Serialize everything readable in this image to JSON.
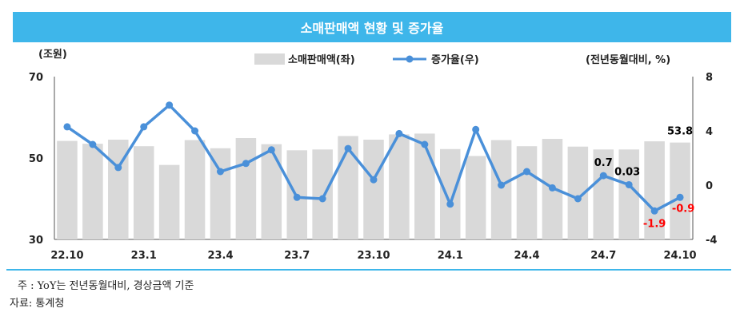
{
  "header": {
    "title": "소매판매액 현황 및 증가율"
  },
  "chart_data": {
    "type": "bar+line",
    "left_unit": "(조원)",
    "right_unit": "(전년동월대비, %)",
    "legend": {
      "bar": "소매판매액(좌)",
      "line": "증가율(우)"
    },
    "y_left": {
      "min": 30,
      "max": 70,
      "ticks": [
        "70",
        "50",
        "30"
      ]
    },
    "y_right": {
      "min": -4,
      "max": 8,
      "ticks": [
        "8",
        "4",
        "0",
        "-4"
      ]
    },
    "x_tick_labels": [
      "22.10",
      "23.1",
      "23.4",
      "23.7",
      "23.10",
      "24.1",
      "24.4",
      "24.7",
      "24.10"
    ],
    "x_tick_index": [
      0,
      3,
      6,
      9,
      12,
      15,
      18,
      21,
      24
    ],
    "categories": [
      "22.10",
      "22.11",
      "22.12",
      "23.1",
      "23.2",
      "23.3",
      "23.4",
      "23.5",
      "23.6",
      "23.7",
      "23.8",
      "23.9",
      "23.10",
      "23.11",
      "23.12",
      "24.1",
      "24.2",
      "24.3",
      "24.4",
      "24.5",
      "24.6",
      "24.7",
      "24.8",
      "24.9",
      "24.10"
    ],
    "series": [
      {
        "name": "소매판매액(좌)",
        "kind": "bar",
        "values": [
          54.2,
          53.5,
          54.5,
          52.9,
          48.3,
          54.4,
          52.4,
          54.9,
          53.4,
          51.9,
          52.1,
          55.4,
          54.5,
          55.8,
          56.0,
          52.2,
          50.5,
          54.4,
          52.9,
          54.7,
          52.8,
          52.1,
          52.1,
          54.1,
          53.8
        ],
        "color": "#D9D9D9"
      },
      {
        "name": "증가율(우)",
        "kind": "line",
        "values": [
          4.3,
          3.0,
          1.3,
          4.3,
          5.9,
          4.0,
          1.0,
          1.6,
          2.6,
          -0.9,
          -1.0,
          2.7,
          0.4,
          3.8,
          3.0,
          -1.4,
          4.1,
          0.0,
          1.0,
          -0.2,
          -1.0,
          0.7,
          0.03,
          -1.9,
          -0.9
        ],
        "color": "#4A90D9"
      }
    ],
    "annotations": [
      {
        "index": 21,
        "text": "0.7",
        "color": "#000000"
      },
      {
        "index": 22,
        "text": "0.03",
        "color": "#000000"
      },
      {
        "index": 23,
        "text": "-1.9",
        "color": "#FF0000"
      },
      {
        "index": 24,
        "text": "-0.9",
        "color": "#FF0000"
      },
      {
        "index": 24,
        "text": "53.8",
        "color": "#000000",
        "on": "bar"
      }
    ]
  },
  "footnotes": {
    "note": "주 : YoY는 전년동월대비, 경상금액 기준",
    "source": "자료: 통계청"
  }
}
